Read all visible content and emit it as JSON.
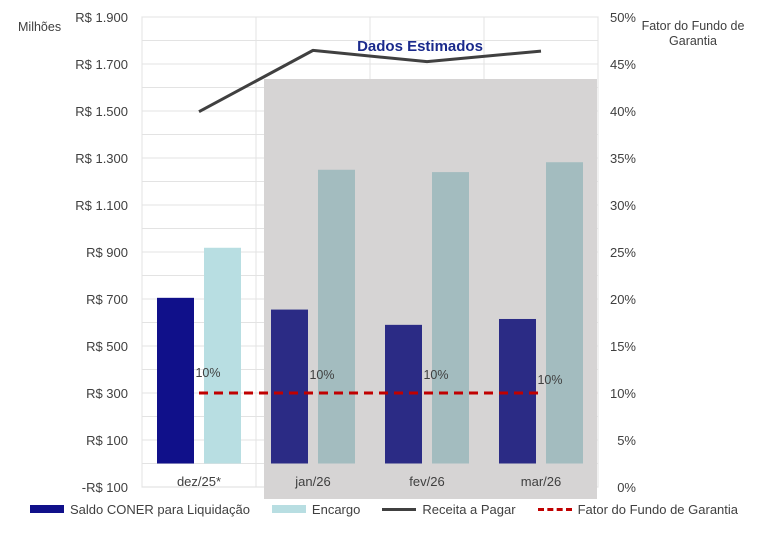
{
  "chart_data": {
    "type": "bar",
    "categories": [
      "dez/25*",
      "jan/26",
      "fev/26",
      "mar/26"
    ],
    "series": [
      {
        "name": "Saldo CONER para Liquidação",
        "type": "bar",
        "axis": "left",
        "color": "#10108a",
        "color_estimated": "#2b2b85",
        "values": [
          705,
          655,
          590,
          615
        ]
      },
      {
        "name": "Encargo",
        "type": "bar",
        "axis": "left",
        "color": "#b8dee2",
        "color_estimated": "#a3bcbf",
        "values": [
          918,
          1250,
          1240,
          1282
        ]
      },
      {
        "name": "Receita a Pagar",
        "type": "line",
        "axis": "left",
        "color": "#404040",
        "values": [
          1497,
          1758,
          1710,
          1755
        ]
      },
      {
        "name": "Fator do Fundo de Garantia",
        "type": "line",
        "axis": "right",
        "style": "dashed",
        "color": "#c00000",
        "values": [
          10,
          10,
          10,
          10
        ]
      }
    ],
    "data_labels": [
      "10%",
      "10%",
      "10%",
      "10%"
    ],
    "y_left": {
      "label": "Milhões",
      "range": [
        -100,
        1900
      ],
      "ticks": [
        "R$ 1.900",
        "R$ 1.700",
        "R$ 1.500",
        "R$ 1.300",
        "R$ 1.100",
        "R$ 900",
        "R$ 700",
        "R$ 500",
        "R$ 300",
        "R$ 100",
        "-R$ 100"
      ],
      "tick_values": [
        1900,
        1700,
        1500,
        1300,
        1100,
        900,
        700,
        500,
        300,
        100,
        -100
      ]
    },
    "y_right": {
      "label": "Fator do Fundo de Garantia",
      "range": [
        0,
        50
      ],
      "ticks": [
        "50%",
        "45%",
        "40%",
        "35%",
        "30%",
        "25%",
        "20%",
        "15%",
        "10%",
        "5%",
        "0%"
      ],
      "tick_values": [
        50,
        45,
        40,
        35,
        30,
        25,
        20,
        15,
        10,
        5,
        0
      ]
    },
    "annotation": "Dados Estimados",
    "estimated_categories": [
      "jan/26",
      "fev/26",
      "mar/26"
    ],
    "estimated_region_color": "#d6d4d4",
    "grid": true,
    "legend_position": "bottom"
  }
}
